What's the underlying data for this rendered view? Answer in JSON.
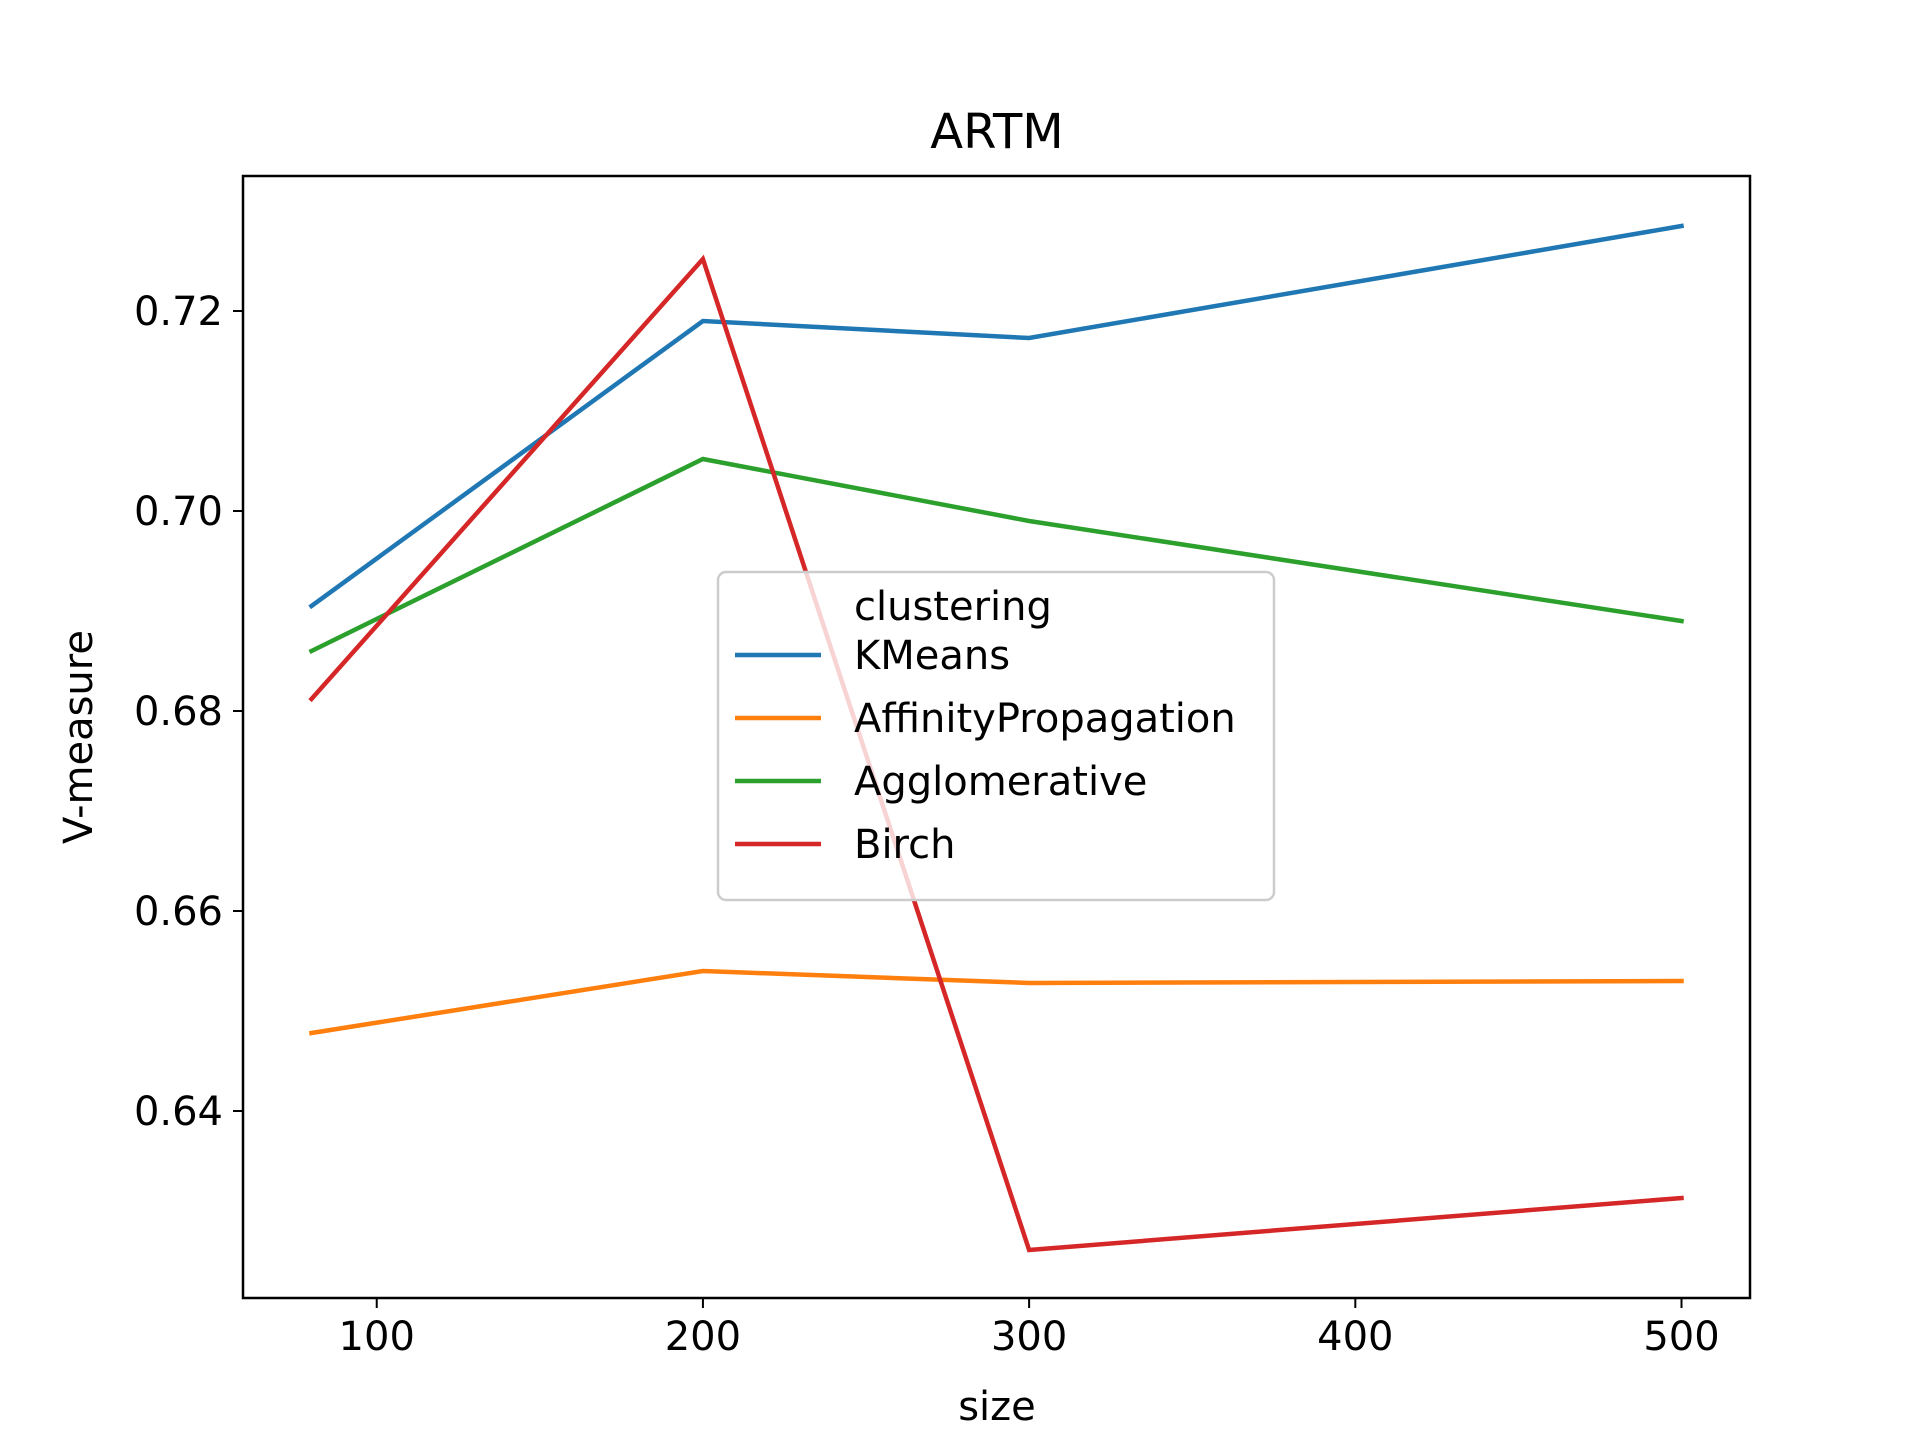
{
  "chart_data": {
    "type": "line",
    "title": "ARTM",
    "xlabel": "size",
    "ylabel": "V-measure",
    "x": [
      80,
      200,
      300,
      500
    ],
    "xlim": [
      59,
      521
    ],
    "ylim": [
      0.6213,
      0.7335
    ],
    "xticks": [
      100,
      200,
      300,
      400,
      500
    ],
    "xtick_labels": [
      "100",
      "200",
      "300",
      "400",
      "500"
    ],
    "yticks": [
      0.64,
      0.66,
      0.68,
      0.7,
      0.72
    ],
    "ytick_labels": [
      "0.64",
      "0.66",
      "0.68",
      "0.70",
      "0.72"
    ],
    "grid": false,
    "legend": {
      "title": "clustering",
      "placement": "center"
    },
    "series": [
      {
        "name": "KMeans",
        "color": "#1f77b4",
        "values": [
          0.6905,
          0.719,
          0.7173,
          0.7285
        ]
      },
      {
        "name": "AffinityPropagation",
        "color": "#ff7f0e",
        "values": [
          0.6478,
          0.654,
          0.6528,
          0.653
        ]
      },
      {
        "name": "Agglomerative",
        "color": "#2ca02c",
        "values": [
          0.686,
          0.7052,
          0.699,
          0.689
        ]
      },
      {
        "name": "Birch",
        "color": "#d62728",
        "values": [
          0.6812,
          0.7252,
          0.6261,
          0.6313
        ]
      }
    ]
  }
}
